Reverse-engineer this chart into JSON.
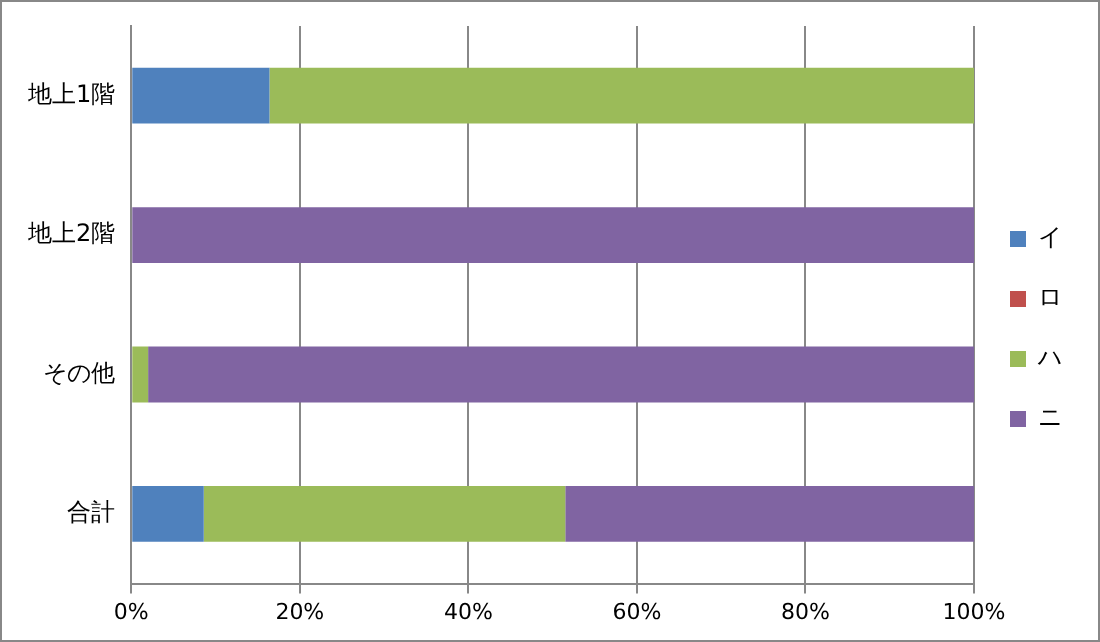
{
  "chart_data": {
    "type": "bar",
    "orientation": "horizontal",
    "stacked": true,
    "categories": [
      "地上1階",
      "地上2階",
      "その他",
      "合計"
    ],
    "series": [
      {
        "name": "イ",
        "color": "#4f81bd",
        "values": [
          16.4,
          0,
          0,
          8.6
        ]
      },
      {
        "name": "ロ",
        "color": "#c0504d",
        "values": [
          0,
          0,
          0,
          0
        ]
      },
      {
        "name": "ハ",
        "color": "#9bbb59",
        "values": [
          83.6,
          0,
          2,
          42.9
        ]
      },
      {
        "name": "ニ",
        "color": "#8064a2",
        "values": [
          0,
          100,
          98,
          48.5
        ]
      }
    ],
    "xlim": [
      0,
      100
    ],
    "xticks": [
      {
        "value": 0,
        "label": "0%"
      },
      {
        "value": 20,
        "label": "20%"
      },
      {
        "value": 40,
        "label": "40%"
      },
      {
        "value": 60,
        "label": "60%"
      },
      {
        "value": 80,
        "label": "80%"
      },
      {
        "value": 100,
        "label": "100%"
      }
    ],
    "grid": "x",
    "legend": "right"
  }
}
